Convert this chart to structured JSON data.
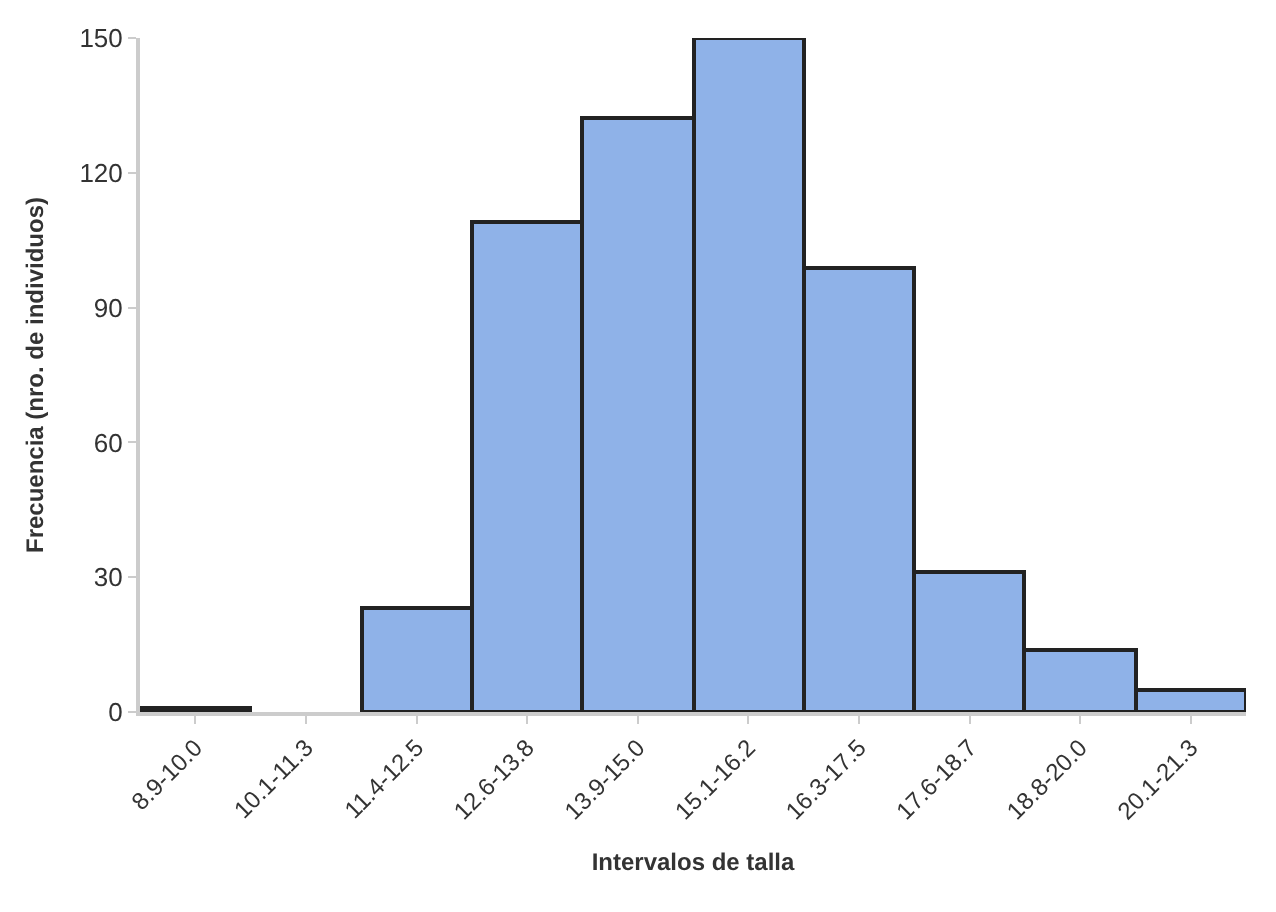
{
  "chart_data": {
    "type": "bar",
    "xlabel": "Intervalos de talla",
    "ylabel": "Frecuencia (nro. de individuos)",
    "categories": [
      "8.9-10.0",
      "10.1-11.3",
      "11.4-12.5",
      "12.6-13.8",
      "13.9-15.0",
      "15.1-16.2",
      "16.3-17.5",
      "17.6-18.7",
      "18.8-20.0",
      "20.1-21.3"
    ],
    "series": [
      {
        "color": "#8fb2e8",
        "values": [
          1,
          0,
          23,
          109,
          132,
          150,
          99,
          31,
          14,
          5
        ]
      }
    ],
    "ylim": [
      0,
      150
    ],
    "yticks": [
      0,
      30,
      60,
      90,
      120,
      150
    ],
    "legend": false
  }
}
